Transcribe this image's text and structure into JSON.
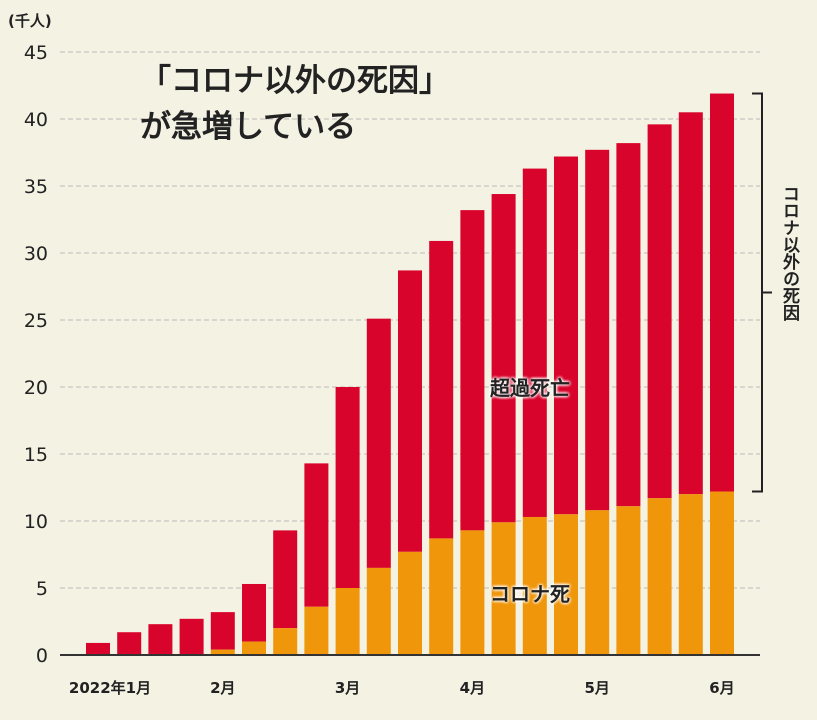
{
  "chart_data": {
    "type": "bar",
    "stacked": true,
    "title": [
      "「コロナ以外の死因」",
      "が急増している"
    ],
    "unit": "(千人)",
    "ylim": [
      0,
      45
    ],
    "yticks": [
      0,
      5,
      10,
      15,
      20,
      25,
      30,
      35,
      40,
      45
    ],
    "grid": true,
    "x_labels": [
      {
        "bar": 1,
        "label": "2022年1月"
      },
      {
        "bar": 5,
        "label": "2月"
      },
      {
        "bar": 9,
        "label": "3月"
      },
      {
        "bar": 13,
        "label": "4月"
      },
      {
        "bar": 17,
        "label": "5月"
      },
      {
        "bar": 21,
        "label": "6月"
      }
    ],
    "series": [
      {
        "name": "コロナ死",
        "color": "#f0960a",
        "values": [
          0,
          0,
          0,
          0,
          0.4,
          1.0,
          2.0,
          3.6,
          5.0,
          6.5,
          7.7,
          8.7,
          9.3,
          9.9,
          10.3,
          10.5,
          10.8,
          11.1,
          11.7,
          12.0,
          12.2
        ]
      },
      {
        "name": "超過死亡",
        "color": "#d9042b",
        "totals": [
          0.9,
          1.7,
          2.3,
          2.7,
          3.2,
          5.3,
          9.3,
          14.3,
          20.0,
          25.1,
          28.7,
          30.9,
          33.2,
          34.4,
          36.3,
          37.2,
          37.7,
          38.2,
          39.6,
          40.5,
          41.9
        ]
      }
    ],
    "annotation": "コロナ以外の死因"
  }
}
